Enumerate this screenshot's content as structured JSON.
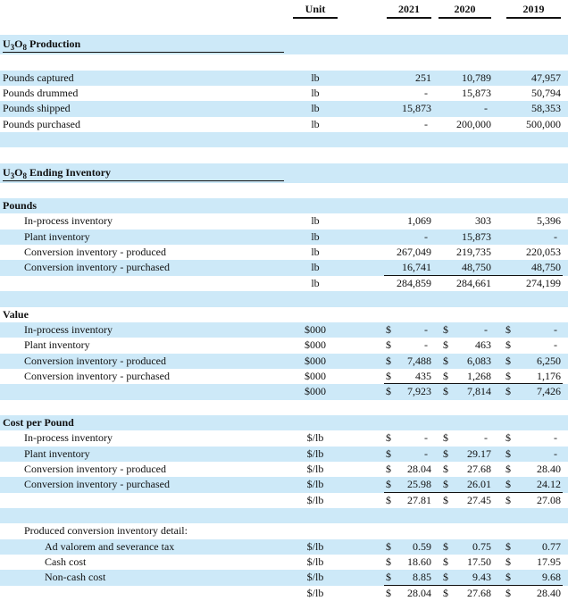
{
  "header": {
    "unit": "Unit",
    "years": [
      "2021",
      "2020",
      "2019"
    ]
  },
  "rows": [
    {
      "type": "spacer"
    },
    {
      "type": "section",
      "label": "U3O8 Production"
    },
    {
      "type": "spacer"
    },
    {
      "type": "item",
      "indent": 0,
      "label": "Pounds captured",
      "unit": "lb",
      "values": [
        "251",
        "10,789",
        "47,957"
      ]
    },
    {
      "type": "item",
      "indent": 0,
      "label": "Pounds drummed",
      "unit": "lb",
      "values": [
        "-",
        "15,873",
        "50,794"
      ]
    },
    {
      "type": "item",
      "indent": 0,
      "label": "Pounds shipped",
      "unit": "lb",
      "values": [
        "15,873",
        "-",
        "58,353"
      ]
    },
    {
      "type": "item",
      "indent": 0,
      "label": "Pounds purchased",
      "unit": "lb",
      "values": [
        "-",
        "200,000",
        "500,000"
      ]
    },
    {
      "type": "spacer"
    },
    {
      "type": "spacer"
    },
    {
      "type": "section",
      "label": "U3O8 Ending Inventory"
    },
    {
      "type": "spacer"
    },
    {
      "type": "group",
      "label": "Pounds"
    },
    {
      "type": "item",
      "indent": 1,
      "label": "In-process inventory",
      "unit": "lb",
      "values": [
        "1,069",
        "303",
        "5,396"
      ]
    },
    {
      "type": "item",
      "indent": 1,
      "label": "Plant inventory",
      "unit": "lb",
      "values": [
        "-",
        "15,873",
        "-"
      ]
    },
    {
      "type": "item",
      "indent": 1,
      "label": "Conversion inventory - produced",
      "unit": "lb",
      "values": [
        "267,049",
        "219,735",
        "220,053"
      ]
    },
    {
      "type": "item",
      "indent": 1,
      "label": "Conversion inventory - purchased",
      "unit": "lb",
      "values": [
        "16,741",
        "48,750",
        "48,750"
      ],
      "rule_below": true
    },
    {
      "type": "item",
      "indent": 1,
      "label": "",
      "unit": "lb",
      "values": [
        "284,859",
        "284,661",
        "274,199"
      ]
    },
    {
      "type": "spacer"
    },
    {
      "type": "group",
      "label": "Value"
    },
    {
      "type": "item",
      "indent": 1,
      "label": "In-process inventory",
      "unit": "$000",
      "currency": "$",
      "values": [
        "-",
        "-",
        "-"
      ]
    },
    {
      "type": "item",
      "indent": 1,
      "label": "Plant inventory",
      "unit": "$000",
      "currency": "$",
      "values": [
        "-",
        "463",
        "-"
      ]
    },
    {
      "type": "item",
      "indent": 1,
      "label": "Conversion inventory - produced",
      "unit": "$000",
      "currency": "$",
      "values": [
        "7,488",
        "6,083",
        "6,250"
      ]
    },
    {
      "type": "item",
      "indent": 1,
      "label": "Conversion inventory - purchased",
      "unit": "$000",
      "currency": "$",
      "values": [
        "435",
        "1,268",
        "1,176"
      ],
      "rule_below": true
    },
    {
      "type": "item",
      "indent": 1,
      "label": "",
      "unit": "$000",
      "currency": "$",
      "values": [
        "7,923",
        "7,814",
        "7,426"
      ]
    },
    {
      "type": "spacer"
    },
    {
      "type": "group",
      "label": "Cost per Pound"
    },
    {
      "type": "item",
      "indent": 1,
      "label": "In-process inventory",
      "unit": "$/lb",
      "currency": "$",
      "values": [
        "-",
        "-",
        "-"
      ]
    },
    {
      "type": "item",
      "indent": 1,
      "label": "Plant inventory",
      "unit": "$/lb",
      "currency": "$",
      "values": [
        "-",
        "29.17",
        "-"
      ]
    },
    {
      "type": "item",
      "indent": 1,
      "label": "Conversion inventory - produced",
      "unit": "$/lb",
      "currency": "$",
      "values": [
        "28.04",
        "27.68",
        "28.40"
      ]
    },
    {
      "type": "item",
      "indent": 1,
      "label": "Conversion inventory - purchased",
      "unit": "$/lb",
      "currency": "$",
      "values": [
        "25.98",
        "26.01",
        "24.12"
      ],
      "rule_below": true
    },
    {
      "type": "item",
      "indent": 1,
      "label": "",
      "unit": "$/lb",
      "currency": "$",
      "values": [
        "27.81",
        "27.45",
        "27.08"
      ]
    },
    {
      "type": "spacer"
    },
    {
      "type": "item",
      "indent": 1,
      "label": "Produced conversion inventory detail:",
      "unit": "",
      "values": [
        "",
        "",
        ""
      ]
    },
    {
      "type": "item",
      "indent": 2,
      "label": "Ad valorem and severance tax",
      "unit": "$/lb",
      "currency": "$",
      "values": [
        "0.59",
        "0.75",
        "0.77"
      ]
    },
    {
      "type": "item",
      "indent": 2,
      "label": "Cash cost",
      "unit": "$/lb",
      "currency": "$",
      "values": [
        "18.60",
        "17.50",
        "17.95"
      ]
    },
    {
      "type": "item",
      "indent": 2,
      "label": "Non-cash cost",
      "unit": "$/lb",
      "currency": "$",
      "values": [
        "8.85",
        "9.43",
        "9.68"
      ],
      "rule_below": true
    },
    {
      "type": "item",
      "indent": 2,
      "label": "",
      "unit": "$/lb",
      "currency": "$",
      "values": [
        "28.04",
        "27.68",
        "28.40"
      ]
    }
  ],
  "colors": {
    "band": "#cde9f8",
    "text": "#111111"
  }
}
